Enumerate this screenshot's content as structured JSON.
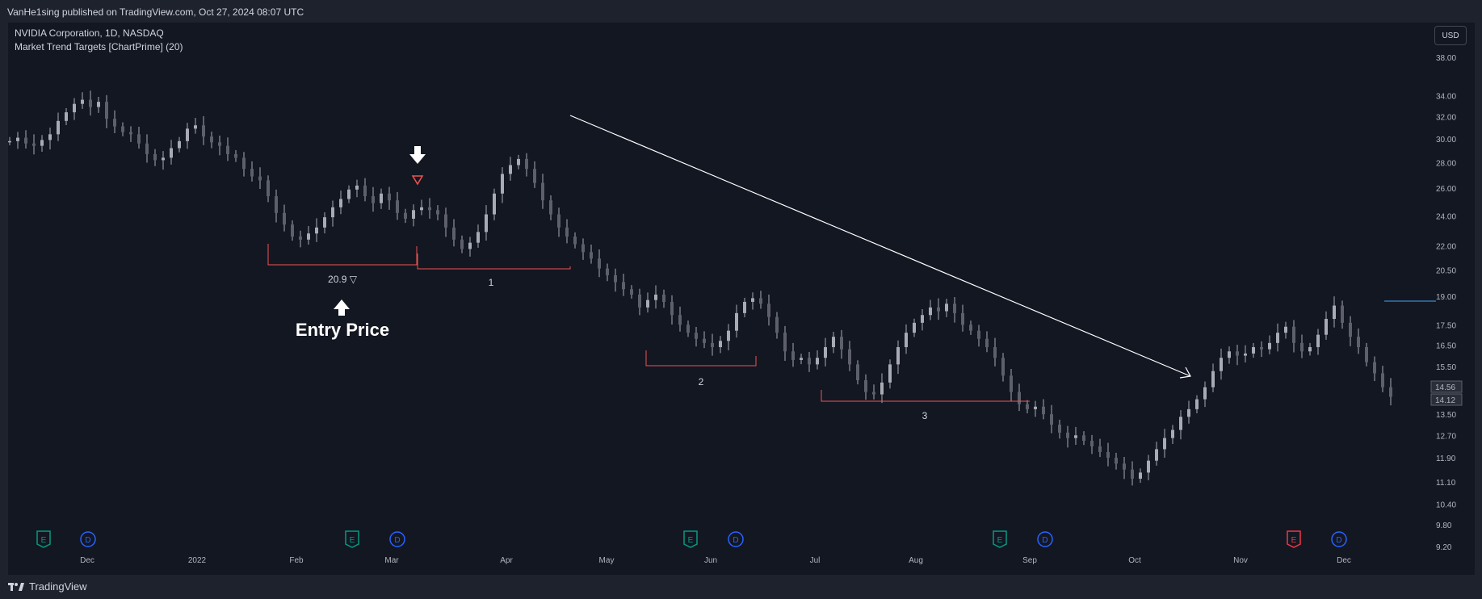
{
  "header": {
    "published": "VanHe1sing published on TradingView.com, Oct 27, 2024 08:07 UTC"
  },
  "legend": {
    "symbol": "NVIDIA Corporation, 1D, NASDAQ",
    "indicator": "Market Trend Targets [ChartPrime] (20)"
  },
  "currency_button": "USD",
  "footer": {
    "brand": "TradingView"
  },
  "chart_data": {
    "type": "candlestick",
    "y_axis": {
      "scale": "log",
      "range": [
        9.2,
        38.0
      ],
      "ticks": [
        "38.00",
        "34.00",
        "32.00",
        "30.00",
        "28.00",
        "26.00",
        "24.00",
        "22.00",
        "20.50",
        "19.00",
        "17.50",
        "16.50",
        "15.50",
        "14.50",
        "13.50",
        "12.70",
        "11.90",
        "11.10",
        "10.40",
        "9.80",
        "9.20"
      ]
    },
    "x_axis": {
      "ticks": [
        "Dec",
        "2022",
        "Feb",
        "Mar",
        "Apr",
        "May",
        "Jun",
        "Jul",
        "Aug",
        "Sep",
        "Oct",
        "Nov",
        "Dec"
      ]
    },
    "price_labels": [
      "14.56",
      "14.12"
    ],
    "colors": {
      "background": "#131722",
      "candle": "#a8abb3",
      "target_line": "#ef5350",
      "trend_line": "#ffffff",
      "axis_text": "#b2b5be",
      "high_line": "#42a5f5"
    },
    "annotations": {
      "entry_label": "20.9 ▽",
      "entry_text": "Entry Price",
      "target_labels": [
        "1",
        "2",
        "3"
      ]
    },
    "events": [
      {
        "kind": "E",
        "color": "#089981"
      },
      {
        "kind": "D",
        "color": "#2962ff"
      },
      {
        "kind": "E",
        "color": "#089981"
      },
      {
        "kind": "D",
        "color": "#2962ff"
      },
      {
        "kind": "E",
        "color": "#089981"
      },
      {
        "kind": "D",
        "color": "#2962ff"
      },
      {
        "kind": "E",
        "color": "#089981"
      },
      {
        "kind": "D",
        "color": "#2962ff"
      },
      {
        "kind": "E",
        "color": "#f23645"
      },
      {
        "kind": "D",
        "color": "#2962ff"
      }
    ],
    "candle_points": [
      [
        29.8,
        10
      ],
      [
        30.1,
        20
      ],
      [
        29.6,
        30
      ],
      [
        29.4,
        40
      ],
      [
        29.9,
        50
      ],
      [
        30.4,
        60
      ],
      [
        31.6,
        70
      ],
      [
        32.4,
        80
      ],
      [
        33.2,
        90
      ],
      [
        33.6,
        100
      ],
      [
        32.9,
        110
      ],
      [
        33.4,
        120
      ],
      [
        31.8,
        130
      ],
      [
        31.1,
        140
      ],
      [
        30.6,
        150
      ],
      [
        30.4,
        160
      ],
      [
        29.6,
        170
      ],
      [
        28.7,
        180
      ],
      [
        28.2,
        190
      ],
      [
        28.4,
        200
      ],
      [
        29.2,
        210
      ],
      [
        29.8,
        220
      ],
      [
        30.9,
        230
      ],
      [
        31.2,
        240
      ],
      [
        30.2,
        250
      ],
      [
        29.7,
        260
      ],
      [
        29.4,
        270
      ],
      [
        28.7,
        280
      ],
      [
        28.4,
        290
      ],
      [
        27.5,
        300
      ],
      [
        26.9,
        310
      ],
      [
        26.6,
        320
      ],
      [
        25.4,
        330
      ],
      [
        24.2,
        340
      ],
      [
        23.4,
        350
      ],
      [
        22.6,
        360
      ],
      [
        22.4,
        370
      ],
      [
        22.8,
        380
      ],
      [
        23.2,
        390
      ],
      [
        23.9,
        400
      ],
      [
        24.6,
        410
      ],
      [
        25.2,
        420
      ],
      [
        25.9,
        430
      ],
      [
        26.2,
        440
      ],
      [
        25.4,
        450
      ],
      [
        24.9,
        460
      ],
      [
        25.6,
        470
      ],
      [
        25.1,
        480
      ],
      [
        24.2,
        490
      ],
      [
        23.8,
        500
      ],
      [
        24.4,
        510
      ],
      [
        24.6,
        520
      ],
      [
        24.4,
        530
      ],
      [
        24.1,
        540
      ],
      [
        23.2,
        550
      ],
      [
        22.4,
        560
      ],
      [
        21.8,
        570
      ],
      [
        22.2,
        580
      ],
      [
        22.9,
        590
      ],
      [
        24.1,
        600
      ],
      [
        25.6,
        610
      ],
      [
        27.1,
        620
      ],
      [
        27.8,
        630
      ],
      [
        28.3,
        640
      ],
      [
        27.5,
        650
      ],
      [
        26.4,
        660
      ],
      [
        25.1,
        670
      ],
      [
        24.1,
        680
      ],
      [
        23.2,
        690
      ],
      [
        22.6,
        700
      ],
      [
        22.1,
        710
      ],
      [
        21.6,
        720
      ],
      [
        21.2,
        730
      ],
      [
        20.6,
        740
      ],
      [
        20.2,
        750
      ],
      [
        19.8,
        760
      ],
      [
        19.4,
        770
      ],
      [
        19.1,
        780
      ],
      [
        18.4,
        790
      ],
      [
        18.8,
        800
      ],
      [
        19.1,
        810
      ],
      [
        18.7,
        820
      ],
      [
        18.0,
        830
      ],
      [
        17.5,
        840
      ],
      [
        17.1,
        850
      ],
      [
        16.8,
        860
      ],
      [
        16.6,
        870
      ],
      [
        16.4,
        880
      ],
      [
        16.7,
        890
      ],
      [
        17.2,
        900
      ],
      [
        18.1,
        910
      ],
      [
        18.7,
        920
      ],
      [
        18.9,
        930
      ],
      [
        18.6,
        940
      ],
      [
        17.9,
        950
      ],
      [
        17.1,
        960
      ],
      [
        16.2,
        970
      ],
      [
        15.8,
        980
      ],
      [
        15.9,
        990
      ],
      [
        15.6,
        1000
      ],
      [
        15.9,
        1010
      ],
      [
        16.4,
        1020
      ],
      [
        16.9,
        1030
      ],
      [
        16.3,
        1040
      ],
      [
        15.6,
        1050
      ],
      [
        14.9,
        1060
      ],
      [
        14.4,
        1070
      ],
      [
        14.3,
        1080
      ],
      [
        14.8,
        1090
      ],
      [
        15.6,
        1100
      ],
      [
        16.4,
        1110
      ],
      [
        17.1,
        1120
      ],
      [
        17.6,
        1130
      ],
      [
        18.0,
        1140
      ],
      [
        18.4,
        1150
      ],
      [
        18.2,
        1160
      ],
      [
        18.6,
        1170
      ],
      [
        18.1,
        1180
      ],
      [
        17.5,
        1190
      ],
      [
        17.2,
        1200
      ],
      [
        16.8,
        1210
      ],
      [
        16.4,
        1220
      ],
      [
        15.9,
        1230
      ],
      [
        15.1,
        1240
      ],
      [
        14.4,
        1250
      ],
      [
        13.9,
        1260
      ],
      [
        13.7,
        1270
      ],
      [
        13.8,
        1280
      ],
      [
        13.5,
        1290
      ],
      [
        13.1,
        1300
      ],
      [
        12.8,
        1310
      ],
      [
        12.6,
        1320
      ],
      [
        12.7,
        1330
      ],
      [
        12.5,
        1340
      ],
      [
        12.3,
        1350
      ],
      [
        12.1,
        1360
      ],
      [
        11.9,
        1370
      ],
      [
        11.7,
        1380
      ],
      [
        11.5,
        1390
      ],
      [
        11.2,
        1400
      ],
      [
        11.4,
        1410
      ],
      [
        11.8,
        1420
      ],
      [
        12.2,
        1430
      ],
      [
        12.6,
        1440
      ],
      [
        12.9,
        1450
      ],
      [
        13.4,
        1460
      ],
      [
        13.7,
        1470
      ],
      [
        14.1,
        1480
      ],
      [
        14.6,
        1490
      ],
      [
        15.3,
        1500
      ],
      [
        15.9,
        1510
      ],
      [
        16.2,
        1520
      ],
      [
        16.0,
        1530
      ],
      [
        16.1,
        1540
      ],
      [
        16.4,
        1550
      ],
      [
        16.3,
        1560
      ],
      [
        16.6,
        1570
      ],
      [
        17.1,
        1580
      ],
      [
        17.4,
        1590
      ],
      [
        16.6,
        1600
      ],
      [
        16.2,
        1610
      ],
      [
        16.4,
        1620
      ],
      [
        17.0,
        1630
      ],
      [
        17.8,
        1640
      ],
      [
        18.5,
        1650
      ],
      [
        17.6,
        1660
      ],
      [
        16.9,
        1670
      ],
      [
        16.4,
        1680
      ],
      [
        15.7,
        1690
      ],
      [
        15.2,
        1700
      ],
      [
        14.6,
        1710
      ],
      [
        14.2,
        1720
      ]
    ]
  }
}
